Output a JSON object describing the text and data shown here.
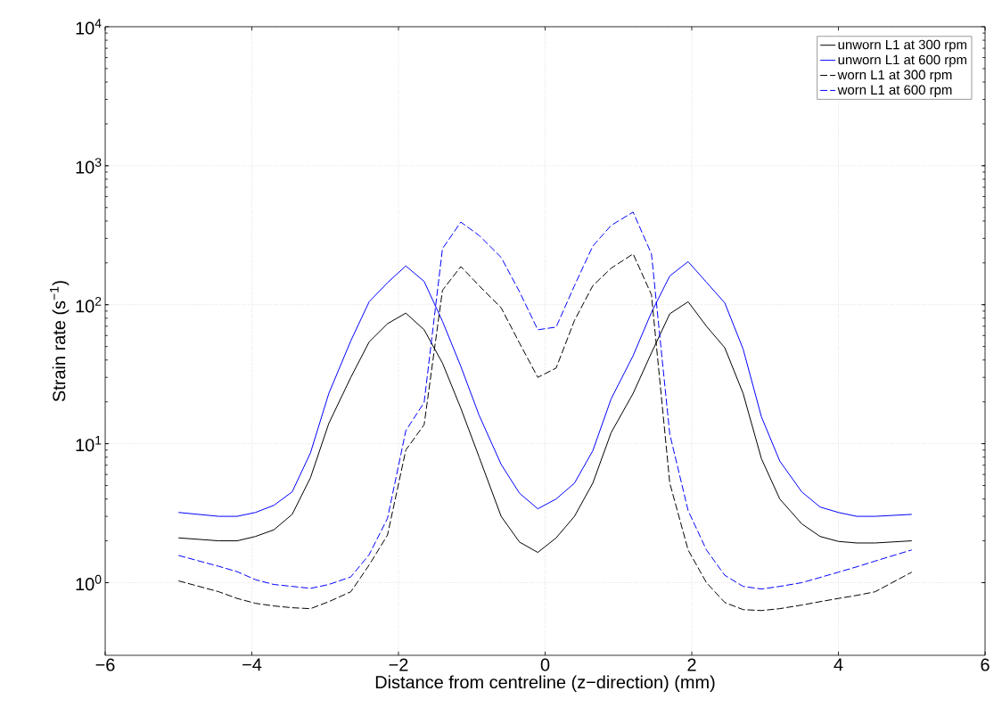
{
  "chart_data": {
    "type": "line",
    "xlabel": "Distance from centreline (z−direction) (mm)",
    "ylabel": "Strain rate (s$^{−1}$)",
    "x": [
      -5,
      -4.45,
      -4.2,
      -3.95,
      -3.7,
      -3.45,
      -3.2,
      -2.95,
      -2.65,
      -2.4,
      -2.15,
      -1.9,
      -1.65,
      -1.4,
      -1.15,
      -0.9,
      -0.6,
      -0.35,
      -0.1,
      0.15,
      0.4,
      0.65,
      0.9,
      1.2,
      1.45,
      1.7,
      1.95,
      2.2,
      2.45,
      2.7,
      2.95,
      3.2,
      3.5,
      3.75,
      4.0,
      4.25,
      4.5,
      5.0
    ],
    "series": [
      {
        "name": "unworn L1 at 300 rpm",
        "color": "#000000",
        "line_style": "solid",
        "values": [
          2.1,
          2.0,
          2.0,
          2.15,
          2.4,
          3.1,
          5.7,
          14,
          30,
          54,
          73,
          87,
          66,
          38,
          18,
          8,
          3.0,
          1.96,
          1.65,
          2.1,
          3.0,
          5.2,
          12,
          23,
          45,
          86,
          105,
          70,
          49,
          23,
          7.8,
          4.0,
          2.65,
          2.15,
          1.98,
          1.93,
          1.93,
          2.0
        ]
      },
      {
        "name": "unworn L1 at 600 rpm",
        "color": "#0000ff",
        "line_style": "solid",
        "values": [
          3.2,
          3.0,
          3.0,
          3.2,
          3.6,
          4.5,
          8.6,
          23,
          55,
          105,
          144,
          190,
          147,
          76,
          36,
          16,
          7.1,
          4.4,
          3.4,
          4.0,
          5.2,
          8.9,
          21,
          43,
          88,
          161,
          204,
          145,
          103,
          48,
          15.6,
          7.5,
          4.5,
          3.5,
          3.2,
          3.0,
          3.0,
          3.1
        ]
      },
      {
        "name": "worn L1 at 300 rpm",
        "color": "#000000",
        "line_style": "dashed",
        "values": [
          1.03,
          0.86,
          0.77,
          0.71,
          0.68,
          0.66,
          0.65,
          0.73,
          0.86,
          1.34,
          2.2,
          9.0,
          13.7,
          127,
          188,
          137,
          95,
          53,
          30,
          35,
          77,
          137,
          183,
          232,
          118,
          5.2,
          1.72,
          1.0,
          0.72,
          0.64,
          0.63,
          0.65,
          0.69,
          0.73,
          0.77,
          0.81,
          0.86,
          1.19
        ]
      },
      {
        "name": "worn L1 at 600 rpm",
        "color": "#0000ff",
        "line_style": "dashed",
        "values": [
          1.57,
          1.31,
          1.2,
          1.05,
          0.97,
          0.94,
          0.91,
          0.97,
          1.1,
          1.59,
          2.9,
          12.4,
          19.8,
          253,
          393,
          315,
          219,
          124,
          66,
          69,
          137,
          264,
          372,
          464,
          232,
          11.7,
          3.3,
          1.72,
          1.13,
          0.94,
          0.9,
          0.94,
          1.0,
          1.09,
          1.19,
          1.3,
          1.43,
          1.72
        ]
      }
    ],
    "xlim": [
      -6,
      6
    ],
    "ylim": [
      0.3,
      10000
    ],
    "xticks": [
      {
        "value": -6,
        "label": "−6"
      },
      {
        "value": -4,
        "label": "−4"
      },
      {
        "value": -2,
        "label": "−2"
      },
      0,
      2,
      4,
      6
    ],
    "yticks": [
      {
        "value": 1,
        "label": "10$^{0}$"
      },
      {
        "value": 10,
        "label": "10$^{1}$"
      },
      {
        "value": 100,
        "label": "10$^{2}$"
      },
      {
        "value": 1000,
        "label": "10$^{3}$"
      },
      {
        "value": 10000,
        "label": "10$^{4}$"
      }
    ],
    "log": "y",
    "grid": true,
    "legend": "top right",
    "marker": "none"
  }
}
